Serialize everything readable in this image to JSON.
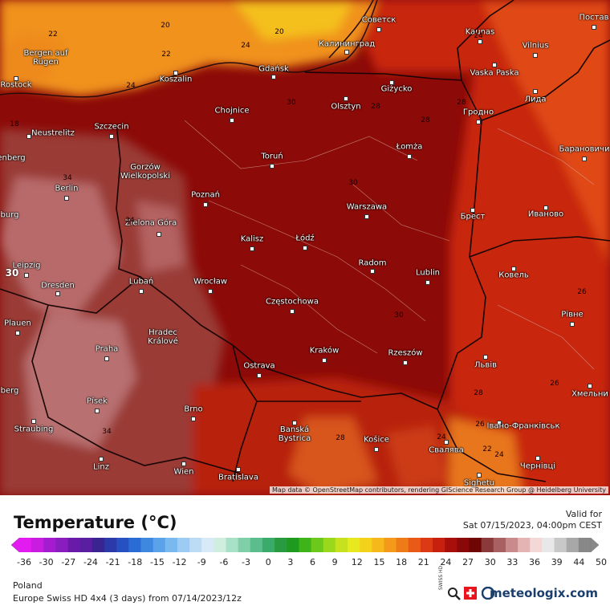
{
  "map": {
    "cities": [
      "Советск",
      "Kaunas",
      "Vilnius",
      "Постав",
      "Калининград",
      "Gdańsk",
      "Bergen auf Rügen",
      "Rostock",
      "Koszalin",
      "Vaska Paska",
      "Лида",
      "Giżycko",
      "Olsztyn",
      "Chojnice",
      "Гродно",
      "Neustrelitz",
      "Szczecin",
      "Барановичи",
      "Łomża",
      "Toruń",
      "Gorzów Wielkopolski",
      "Berlin",
      "Poznań",
      "Warszawa",
      "Брест",
      "Иваново",
      "Zielona Góra",
      "Łódź",
      "Kalisz",
      "Radom",
      "Leipzig",
      "Lublin",
      "Ковель",
      "Dresden",
      "Lubań",
      "Wrocław",
      "Częstochowa",
      "Plauen",
      "Рівне",
      "Hradec Králové",
      "Praha",
      "Kraków",
      "Rzeszów",
      "Львів",
      "Ostrava",
      "Хмельни",
      "Písek",
      "Brno",
      "Івано-Франківськ",
      "Straubing",
      "Banská Bystrica",
      "Košice",
      "Свалява",
      "Linz",
      "Wien",
      "Bratislava",
      "Чернівці",
      "Sighetu",
      "enberg",
      "burg",
      "berg"
    ],
    "contours": [
      "22",
      "20",
      "22",
      "20",
      "24",
      "24",
      "24",
      "28",
      "30",
      "34",
      "34",
      "30",
      "28",
      "28",
      "26",
      "26",
      "30",
      "34",
      "28",
      "24",
      "22",
      "24",
      "28",
      "26",
      "30",
      "18"
    ],
    "attribution": "Map data © OpenStreetMap contributors, rendering GIScience Research Group @ Heidelberg University"
  },
  "legend": {
    "title": "Temperature (°C)",
    "colors": [
      "#e21cf0",
      "#c81de0",
      "#a31ccf",
      "#8a1dbd",
      "#6a1aa8",
      "#5a1ea0",
      "#3a2590",
      "#2b3aa8",
      "#2551c2",
      "#2a6cd6",
      "#3e88e0",
      "#5aa2ea",
      "#7ab8f0",
      "#9ccbf4",
      "#bcdcf6",
      "#d8eaf8",
      "#cfeee0",
      "#a8e0c8",
      "#7fcfa8",
      "#5cbd8c",
      "#3aab6a",
      "#2a9a40",
      "#1e9a1e",
      "#3eb31a",
      "#6cc81a",
      "#9ad81c",
      "#c6e21e",
      "#e8e81e",
      "#f4d21c",
      "#f6b81a",
      "#f4991a",
      "#ee7a18",
      "#e85a16",
      "#dc3a14",
      "#c8200f",
      "#a80e0a",
      "#8a0808",
      "#6e0606",
      "#8a3a3a",
      "#a86060",
      "#c88a8a",
      "#e4b4b4",
      "#f4d8d8",
      "#e8e8e8",
      "#c8c8c8",
      "#a8a8a8",
      "#888888"
    ],
    "ticks": [
      "-36",
      "-30",
      "-27",
      "-24",
      "-21",
      "-18",
      "-15",
      "-12",
      "-9",
      "-6",
      "-3",
      "0",
      "3",
      "6",
      "9",
      "12",
      "15",
      "18",
      "21",
      "24",
      "27",
      "30",
      "33",
      "36",
      "39",
      "44",
      "50"
    ]
  },
  "info": {
    "valid_label": "Valid for",
    "valid_time": "Sat 07/15/2023, 04:00pm CEST",
    "region": "Poland",
    "model": "Europe Swiss HD 4x4 (3 days) from 07/14/2023/12z",
    "brand": "meteologix.com",
    "badge": "SWISS HD"
  }
}
